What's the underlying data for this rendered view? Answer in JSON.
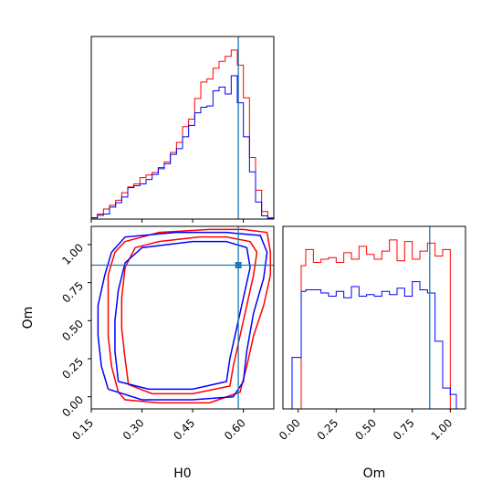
{
  "colors": {
    "series_red": "#ff0000",
    "series_blue": "#0000ff",
    "truth": "#1f77b4",
    "axes": "#000000"
  },
  "chart_data": [
    {
      "panel": "H0 marginal histogram",
      "type": "histogram",
      "xlim": [
        0.15,
        0.69
      ],
      "truth_x": 0.585,
      "ticks_x": [
        0.15,
        0.3,
        0.45,
        0.6
      ],
      "tick_labels_shown": false,
      "bins": [
        0.15,
        0.168,
        0.186,
        0.204,
        0.222,
        0.24,
        0.258,
        0.276,
        0.294,
        0.312,
        0.33,
        0.348,
        0.366,
        0.384,
        0.402,
        0.42,
        0.438,
        0.456,
        0.474,
        0.492,
        0.51,
        0.528,
        0.546,
        0.564,
        0.582,
        0.6,
        0.618,
        0.636,
        0.654,
        0.672,
        0.69
      ],
      "series": [
        {
          "name": "",
          "color": "red",
          "values": [
            0.2,
            0.8,
            1.6,
            2.2,
            3.0,
            4.2,
            5.1,
            5.6,
            6.6,
            7.0,
            7.4,
            8.2,
            9.1,
            10.6,
            12.2,
            14.7,
            15.9,
            19.2,
            21.8,
            22.3,
            24.0,
            25.1,
            25.9,
            26.9,
            24.5,
            19.3,
            9.8,
            4.6,
            1.2,
            0.2
          ]
        },
        {
          "name": "",
          "color": "blue",
          "values": [
            0.2,
            0.6,
            0.8,
            1.9,
            2.6,
            3.5,
            5.0,
            5.3,
            5.6,
            6.3,
            7.1,
            8.0,
            8.8,
            10.3,
            11.2,
            13.1,
            14.9,
            16.9,
            17.8,
            18.0,
            20.4,
            21.0,
            19.9,
            22.8,
            18.5,
            13.1,
            7.5,
            2.7,
            0.5,
            0.1
          ]
        }
      ]
    },
    {
      "panel": "H0 vs Om joint contours",
      "type": "contour",
      "xlim": [
        0.15,
        0.69
      ],
      "ylim": [
        -0.08,
        1.12
      ],
      "xticks": [
        "0.15",
        "0.30",
        "0.45",
        "0.60"
      ],
      "yticks": [
        "0.00",
        "0.25",
        "0.50",
        "0.75",
        "1.00"
      ],
      "xlabel": "H0",
      "ylabel": "Om",
      "truth": {
        "x": 0.585,
        "y": 0.865
      },
      "contours": [
        {
          "color": "red",
          "level": "outer",
          "points": [
            [
              0.23,
              0.03
            ],
            [
              0.21,
              0.2
            ],
            [
              0.2,
              0.4
            ],
            [
              0.2,
              0.6
            ],
            [
              0.2,
              0.8
            ],
            [
              0.22,
              0.95
            ],
            [
              0.25,
              1.02
            ],
            [
              0.35,
              1.08
            ],
            [
              0.5,
              1.1
            ],
            [
              0.6,
              1.1
            ],
            [
              0.67,
              1.08
            ],
            [
              0.68,
              0.95
            ],
            [
              0.68,
              0.8
            ],
            [
              0.66,
              0.6
            ],
            [
              0.63,
              0.4
            ],
            [
              0.61,
              0.2
            ],
            [
              0.59,
              0.03
            ],
            [
              0.5,
              -0.04
            ],
            [
              0.35,
              -0.04
            ],
            [
              0.25,
              -0.02
            ],
            [
              0.23,
              0.03
            ]
          ]
        },
        {
          "color": "red",
          "level": "inner",
          "points": [
            [
              0.26,
              0.08
            ],
            [
              0.25,
              0.25
            ],
            [
              0.24,
              0.45
            ],
            [
              0.24,
              0.65
            ],
            [
              0.25,
              0.85
            ],
            [
              0.28,
              0.98
            ],
            [
              0.35,
              1.02
            ],
            [
              0.47,
              1.05
            ],
            [
              0.55,
              1.05
            ],
            [
              0.62,
              1.02
            ],
            [
              0.64,
              0.95
            ],
            [
              0.63,
              0.8
            ],
            [
              0.61,
              0.6
            ],
            [
              0.59,
              0.4
            ],
            [
              0.57,
              0.2
            ],
            [
              0.56,
              0.07
            ],
            [
              0.45,
              0.02
            ],
            [
              0.33,
              0.02
            ],
            [
              0.26,
              0.08
            ]
          ]
        },
        {
          "color": "blue",
          "level": "outer",
          "points": [
            [
              0.2,
              0.05
            ],
            [
              0.18,
              0.2
            ],
            [
              0.17,
              0.4
            ],
            [
              0.17,
              0.6
            ],
            [
              0.19,
              0.8
            ],
            [
              0.21,
              0.95
            ],
            [
              0.25,
              1.05
            ],
            [
              0.4,
              1.08
            ],
            [
              0.55,
              1.08
            ],
            [
              0.65,
              1.06
            ],
            [
              0.67,
              0.95
            ],
            [
              0.66,
              0.78
            ],
            [
              0.63,
              0.55
            ],
            [
              0.61,
              0.3
            ],
            [
              0.6,
              0.1
            ],
            [
              0.57,
              0.0
            ],
            [
              0.45,
              -0.02
            ],
            [
              0.3,
              -0.02
            ],
            [
              0.2,
              0.05
            ]
          ]
        },
        {
          "color": "blue",
          "level": "inner",
          "points": [
            [
              0.23,
              0.1
            ],
            [
              0.22,
              0.3
            ],
            [
              0.22,
              0.5
            ],
            [
              0.23,
              0.7
            ],
            [
              0.25,
              0.88
            ],
            [
              0.3,
              0.98
            ],
            [
              0.45,
              1.02
            ],
            [
              0.55,
              1.02
            ],
            [
              0.61,
              0.98
            ],
            [
              0.62,
              0.85
            ],
            [
              0.6,
              0.65
            ],
            [
              0.58,
              0.45
            ],
            [
              0.56,
              0.25
            ],
            [
              0.55,
              0.1
            ],
            [
              0.45,
              0.05
            ],
            [
              0.32,
              0.05
            ],
            [
              0.23,
              0.1
            ]
          ]
        }
      ]
    },
    {
      "panel": "Om marginal histogram",
      "type": "histogram",
      "xlim": [
        -0.1,
        1.1
      ],
      "xticks": [
        "0.00",
        "0.25",
        "0.50",
        "0.75",
        "1.00"
      ],
      "xlabel": "Om",
      "truth_x": 0.865,
      "bins": [
        -0.1,
        -0.04,
        0.02,
        0.05,
        0.1,
        0.15,
        0.2,
        0.25,
        0.3,
        0.35,
        0.4,
        0.45,
        0.5,
        0.55,
        0.6,
        0.65,
        0.7,
        0.75,
        0.8,
        0.85,
        0.9,
        0.95,
        1.0,
        1.04,
        1.1
      ],
      "series": [
        {
          "name": "",
          "color": "red",
          "values": [
            0.0,
            0.0,
            8.9,
            9.9,
            9.1,
            9.3,
            9.4,
            9.1,
            9.7,
            9.3,
            10.1,
            9.6,
            9.3,
            9.8,
            10.5,
            9.2,
            10.4,
            9.3,
            9.8,
            10.3,
            9.5,
            9.9,
            0.0,
            0.0
          ]
        },
        {
          "name": "",
          "color": "blue",
          "values": [
            0.0,
            3.2,
            7.3,
            7.4,
            7.4,
            7.2,
            7.0,
            7.3,
            6.9,
            7.6,
            7.0,
            7.1,
            7.0,
            7.3,
            7.1,
            7.5,
            7.0,
            7.9,
            7.4,
            7.2,
            4.2,
            1.3,
            0.9,
            0.0
          ]
        }
      ]
    }
  ]
}
